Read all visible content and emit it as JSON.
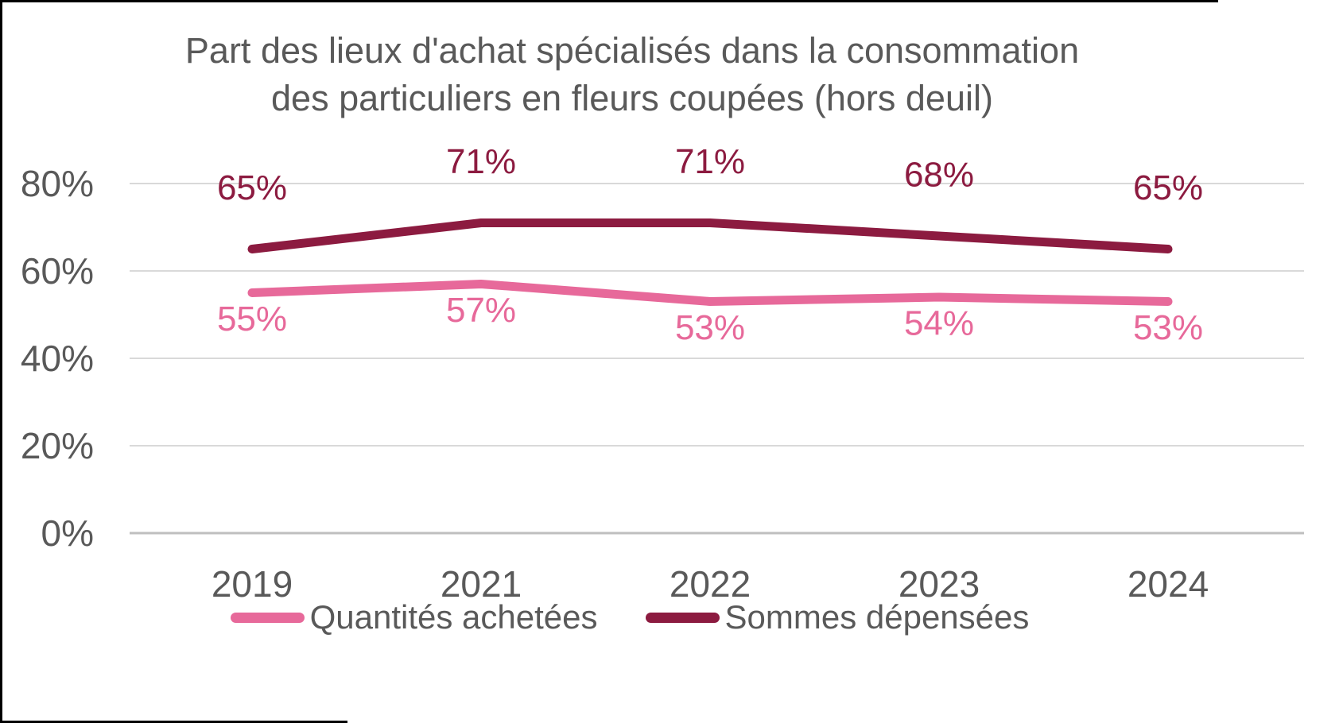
{
  "title_lines": [
    "Part des lieux d'achat spécialisés dans la consommation",
    "des particuliers en fleurs coupées (hors deuil)"
  ],
  "colors": {
    "title_text": "#595959",
    "tick_text": "#595959",
    "gridline": "#D9D9D9",
    "axis_line": "#BFBFBF",
    "frame_border": "#000000",
    "series_pink": "#E7699A",
    "series_maroon": "#8C1B40"
  },
  "chart_data": {
    "type": "line",
    "title": "Part des lieux d'achat spécialisés dans la consommation des particuliers en fleurs coupées (hors deuil)",
    "categories": [
      "2019",
      "2021",
      "2022",
      "2023",
      "2024"
    ],
    "series": [
      {
        "name": "Quantités achetées",
        "values": [
          55,
          57,
          53,
          54,
          53
        ],
        "labels": [
          "55%",
          "57%",
          "53%",
          "54%",
          "53%"
        ],
        "color": "#E7699A",
        "label_position": "below"
      },
      {
        "name": "Sommes dépensées",
        "values": [
          65,
          71,
          71,
          68,
          65
        ],
        "labels": [
          "65%",
          "71%",
          "71%",
          "68%",
          "65%"
        ],
        "color": "#8C1B40",
        "label_position": "above"
      }
    ],
    "y_ticks": [
      {
        "label": "0%",
        "value": 0
      },
      {
        "label": "20%",
        "value": 20
      },
      {
        "label": "40%",
        "value": 40
      },
      {
        "label": "60%",
        "value": 60
      },
      {
        "label": "80%",
        "value": 80
      }
    ],
    "ylim": [
      0,
      80
    ],
    "xlabel": "",
    "ylabel": "",
    "grid": true,
    "legend_position": "bottom",
    "data_labels": true
  }
}
